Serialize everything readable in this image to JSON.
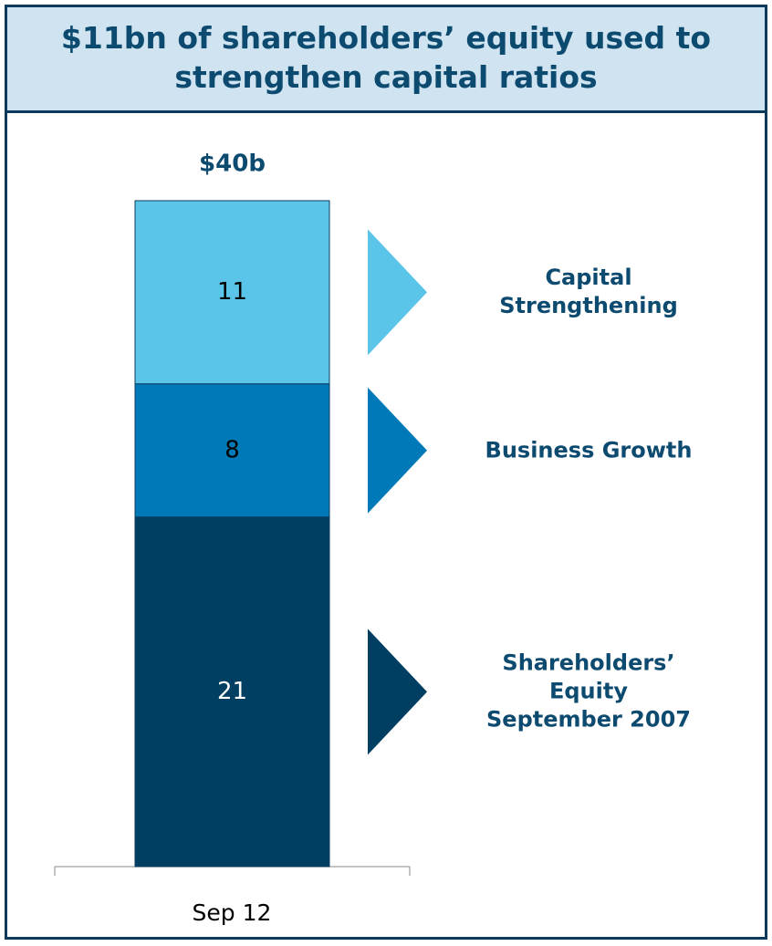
{
  "chart_data": {
    "type": "stacked_bar",
    "title": "$11bn of shareholders’ equity used to\nstrengthen capital ratios",
    "categories": [
      "Sep 12"
    ],
    "series": [
      {
        "name": "Shareholders’\nEquity\nSeptember 2007",
        "color": "#003f62",
        "values": [
          21
        ]
      },
      {
        "name": "Business Growth",
        "color": "#0079b9",
        "values": [
          8
        ]
      },
      {
        "name": "Capital\nStrengthening",
        "color": "#5bc5e9",
        "values": [
          11
        ]
      }
    ],
    "total": {
      "value": 40,
      "label": "$40b"
    },
    "ylim": [
      0,
      40
    ]
  }
}
